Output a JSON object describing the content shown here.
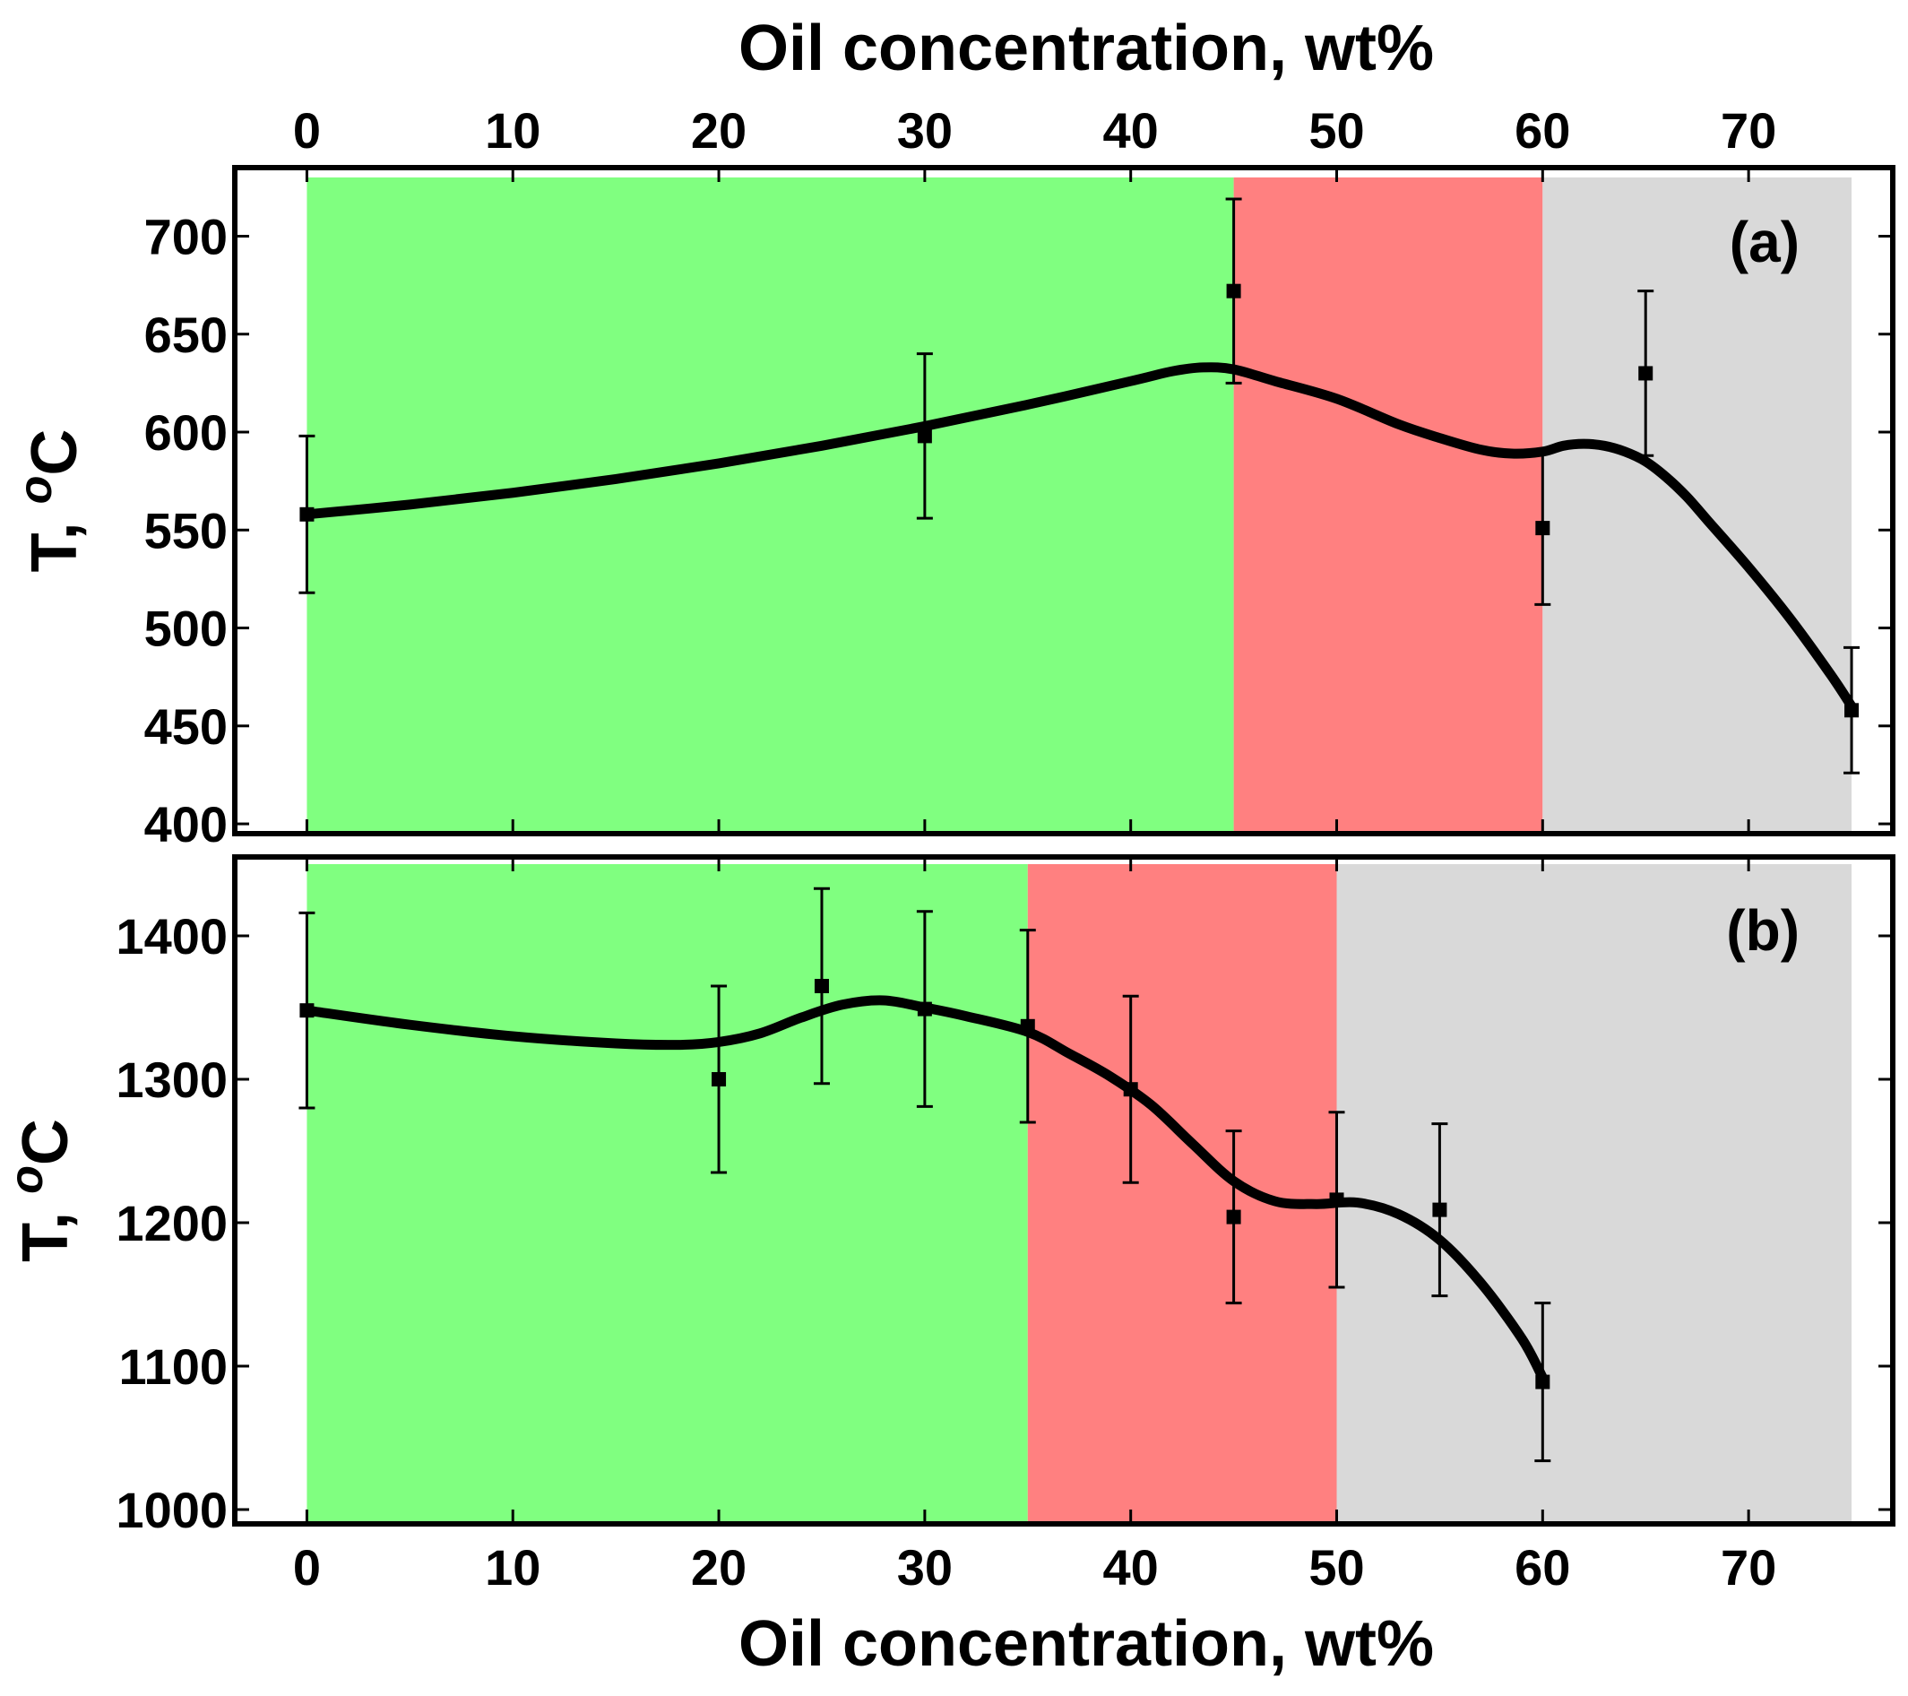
{
  "chart_data": [
    {
      "type": "scatter",
      "panel_label": "(a)",
      "title": "",
      "xlabel": "Oil concentration, wt%",
      "xlabel_position": "top",
      "ylabel": "T, °C",
      "ylabel_parts": {
        "base": "T, ",
        "sup": "o",
        "unit": "C"
      },
      "xlim": [
        -3.5,
        77
      ],
      "ylim": [
        395,
        735
      ],
      "xticks": [
        0,
        10,
        20,
        30,
        40,
        50,
        60,
        70
      ],
      "yticks": [
        400,
        450,
        500,
        550,
        600,
        650,
        700
      ],
      "regions": [
        {
          "name": "green-region",
          "from": 0,
          "to": 45,
          "color": "#80ff80"
        },
        {
          "name": "red-region",
          "from": 45,
          "to": 60,
          "color": "#ff8080"
        },
        {
          "name": "gray-region",
          "from": 60,
          "to": 75,
          "color": "#d9d9d9"
        }
      ],
      "region_ymax": 730,
      "points": [
        {
          "x": 0,
          "y": 558,
          "err": 40
        },
        {
          "x": 30,
          "y": 598,
          "err": 42
        },
        {
          "x": 45,
          "y": 672,
          "err": 47
        },
        {
          "x": 60,
          "y": 551,
          "err": 39
        },
        {
          "x": 65,
          "y": 630,
          "err": 42
        },
        {
          "x": 75,
          "y": 458,
          "err": 32
        }
      ],
      "fit_curve": [
        [
          0,
          558
        ],
        [
          5,
          563
        ],
        [
          10,
          569
        ],
        [
          15,
          576
        ],
        [
          20,
          584
        ],
        [
          25,
          593
        ],
        [
          30,
          603
        ],
        [
          35,
          614
        ],
        [
          40,
          626
        ],
        [
          42,
          631
        ],
        [
          43.5,
          633
        ],
        [
          45,
          632
        ],
        [
          47,
          626
        ],
        [
          50,
          617
        ],
        [
          53,
          604
        ],
        [
          55,
          597
        ],
        [
          57,
          591
        ],
        [
          58.5,
          589
        ],
        [
          60,
          590
        ],
        [
          61,
          593
        ],
        [
          62,
          594
        ],
        [
          63,
          593
        ],
        [
          64,
          590
        ],
        [
          65,
          585
        ],
        [
          66,
          577
        ],
        [
          67,
          567
        ],
        [
          68,
          555
        ],
        [
          70,
          531
        ],
        [
          72,
          505
        ],
        [
          74,
          476
        ],
        [
          75,
          460
        ]
      ]
    },
    {
      "type": "scatter",
      "panel_label": "(b)",
      "title": "",
      "xlabel": "Oil concentration, wt%",
      "xlabel_position": "bottom",
      "ylabel": "T, °C",
      "ylabel_parts": {
        "base": "T, ",
        "sup": "o",
        "unit": "C"
      },
      "xlim": [
        -3.5,
        77
      ],
      "ylim": [
        990,
        1455
      ],
      "xticks": [
        0,
        10,
        20,
        30,
        40,
        50,
        60,
        70
      ],
      "yticks": [
        1000,
        1100,
        1200,
        1300,
        1400
      ],
      "regions": [
        {
          "name": "green-region",
          "from": 0,
          "to": 35,
          "color": "#80ff80"
        },
        {
          "name": "red-region",
          "from": 35,
          "to": 50,
          "color": "#ff8080"
        },
        {
          "name": "gray-region",
          "from": 50,
          "to": 75,
          "color": "#d9d9d9"
        }
      ],
      "region_ymax": 1450,
      "points": [
        {
          "x": 0,
          "y": 1348,
          "err": 68
        },
        {
          "x": 20,
          "y": 1300,
          "err": 65
        },
        {
          "x": 25,
          "y": 1365,
          "err": 68
        },
        {
          "x": 30,
          "y": 1349,
          "err": 68
        },
        {
          "x": 35,
          "y": 1337,
          "err": 67
        },
        {
          "x": 40,
          "y": 1293,
          "err": 65
        },
        {
          "x": 45,
          "y": 1204,
          "err": 60
        },
        {
          "x": 50,
          "y": 1216,
          "err": 61
        },
        {
          "x": 55,
          "y": 1209,
          "err": 60
        },
        {
          "x": 60,
          "y": 1089,
          "err": 55
        }
      ],
      "fit_curve": [
        [
          0,
          1348
        ],
        [
          5,
          1338
        ],
        [
          10,
          1330
        ],
        [
          15,
          1325
        ],
        [
          18,
          1324
        ],
        [
          20,
          1326
        ],
        [
          22,
          1332
        ],
        [
          24,
          1343
        ],
        [
          26,
          1352
        ],
        [
          28,
          1355
        ],
        [
          30,
          1350
        ],
        [
          32,
          1344
        ],
        [
          35,
          1333
        ],
        [
          37,
          1318
        ],
        [
          39,
          1302
        ],
        [
          41,
          1282
        ],
        [
          43,
          1255
        ],
        [
          45,
          1229
        ],
        [
          47,
          1215
        ],
        [
          49,
          1213
        ],
        [
          51,
          1214
        ],
        [
          53,
          1206
        ],
        [
          55,
          1188
        ],
        [
          57,
          1158
        ],
        [
          59,
          1119
        ],
        [
          60,
          1092
        ]
      ]
    }
  ]
}
